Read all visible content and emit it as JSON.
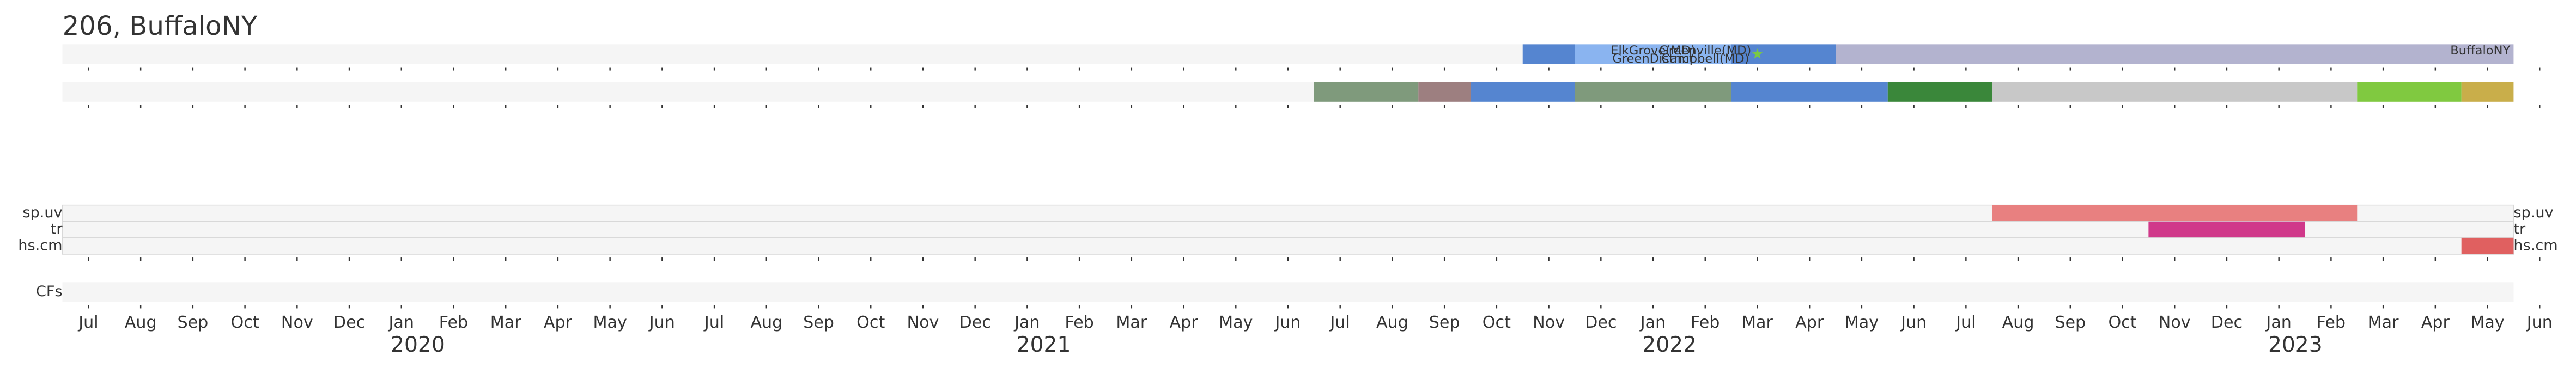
{
  "chart_data": {
    "type": "timeline",
    "title": "206, BuffaloNY",
    "xlim": [
      "2019-07",
      "2023-06"
    ],
    "xticks": [
      {
        "value": "2019-07",
        "label": "Jul"
      },
      {
        "value": "2019-08",
        "label": "Aug"
      },
      {
        "value": "2019-09",
        "label": "Sep"
      },
      {
        "value": "2019-10",
        "label": "Oct"
      },
      {
        "value": "2019-11",
        "label": "Nov"
      },
      {
        "value": "2019-12",
        "label": "Dec"
      },
      {
        "value": "2020-01",
        "label": "Jan"
      },
      {
        "value": "2020-02",
        "label": "Feb"
      },
      {
        "value": "2020-03",
        "label": "Mar"
      },
      {
        "value": "2020-04",
        "label": "Apr"
      },
      {
        "value": "2020-05",
        "label": "May"
      },
      {
        "value": "2020-06",
        "label": "Jun"
      },
      {
        "value": "2020-07",
        "label": "Jul"
      },
      {
        "value": "2020-08",
        "label": "Aug"
      },
      {
        "value": "2020-09",
        "label": "Sep"
      },
      {
        "value": "2020-10",
        "label": "Oct"
      },
      {
        "value": "2020-11",
        "label": "Nov"
      },
      {
        "value": "2020-12",
        "label": "Dec"
      },
      {
        "value": "2021-01",
        "label": "Jan"
      },
      {
        "value": "2021-02",
        "label": "Feb"
      },
      {
        "value": "2021-03",
        "label": "Mar"
      },
      {
        "value": "2021-04",
        "label": "Apr"
      },
      {
        "value": "2021-05",
        "label": "May"
      },
      {
        "value": "2021-06",
        "label": "Jun"
      },
      {
        "value": "2021-07",
        "label": "Jul"
      },
      {
        "value": "2021-08",
        "label": "Aug"
      },
      {
        "value": "2021-09",
        "label": "Sep"
      },
      {
        "value": "2021-10",
        "label": "Oct"
      },
      {
        "value": "2021-11",
        "label": "Nov"
      },
      {
        "value": "2021-12",
        "label": "Dec"
      },
      {
        "value": "2022-01",
        "label": "Jan"
      },
      {
        "value": "2022-02",
        "label": "Feb"
      },
      {
        "value": "2022-03",
        "label": "Mar"
      },
      {
        "value": "2022-04",
        "label": "Apr"
      },
      {
        "value": "2022-05",
        "label": "May"
      },
      {
        "value": "2022-06",
        "label": "Jun"
      },
      {
        "value": "2022-07",
        "label": "Jul"
      },
      {
        "value": "2022-08",
        "label": "Aug"
      },
      {
        "value": "2022-09",
        "label": "Sep"
      },
      {
        "value": "2022-10",
        "label": "Oct"
      },
      {
        "value": "2022-11",
        "label": "Nov"
      },
      {
        "value": "2022-12",
        "label": "Dec"
      },
      {
        "value": "2023-01",
        "label": "Jan"
      },
      {
        "value": "2023-02",
        "label": "Feb"
      },
      {
        "value": "2023-03",
        "label": "Mar"
      },
      {
        "value": "2023-04",
        "label": "Apr"
      },
      {
        "value": "2023-05",
        "label": "May"
      },
      {
        "value": "2023-06",
        "label": "Jun"
      }
    ],
    "year_labels": [
      {
        "value": "2020-01",
        "label": "2020"
      },
      {
        "value": "2021-01",
        "label": "2021"
      },
      {
        "value": "2022-01",
        "label": "2022"
      },
      {
        "value": "2023-01",
        "label": "2023"
      }
    ],
    "tracks": [
      {
        "bars": [
          {
            "start": "2021-11",
            "end": "2021-12",
            "color": "#5585d0"
          },
          {
            "start": "2021-12",
            "end": "2022-03",
            "color": "#8ab4f0"
          },
          {
            "start": "2022-03",
            "end": "2022-05",
            "color": "#5585d0"
          },
          {
            "start": "2022-05",
            "end": "2023-06",
            "color": "#b3b3cf",
            "label": "BuffaloNY"
          }
        ],
        "annotations": [
          {
            "text": "ElkGrove(MD)",
            "date": "2022-01"
          },
          {
            "text": "GreenDistrict",
            "date": "2022-01"
          },
          {
            "text": "Greenville(MD)",
            "date": "2022-02"
          },
          {
            "text": "Campbell(MD)",
            "date": "2022-02"
          }
        ],
        "markers": [
          {
            "date": "2022-03",
            "shape": "star",
            "color": "#7ac943"
          }
        ]
      },
      {
        "bars": [
          {
            "start": "2021-07",
            "end": "2021-09",
            "color": "#7f9a7c"
          },
          {
            "start": "2021-09",
            "end": "2021-10",
            "color": "#9d7f80"
          },
          {
            "start": "2021-10",
            "end": "2021-12",
            "color": "#5585d0"
          },
          {
            "start": "2021-12",
            "end": "2022-03",
            "color": "#7f9a7c"
          },
          {
            "start": "2022-03",
            "end": "2022-06",
            "color": "#5585d0"
          },
          {
            "start": "2022-06",
            "end": "2022-08",
            "color": "#3a873a"
          },
          {
            "start": "2022-08",
            "end": "2023-03",
            "color": "#c8c8c8"
          },
          {
            "start": "2023-03",
            "end": "2023-05",
            "color": "#80c940"
          },
          {
            "start": "2023-05",
            "end": "2023-06",
            "color": "#c9ae4a"
          }
        ]
      },
      {
        "name": "sp.uv",
        "bars": [
          {
            "start": "2022-08",
            "end": "2023-03",
            "color": "#e88080"
          }
        ]
      },
      {
        "name": "tr",
        "bars": [
          {
            "start": "2022-11",
            "end": "2023-02",
            "color": "#d0388a"
          }
        ]
      },
      {
        "name": "hs.cm",
        "bars": [
          {
            "start": "2023-05",
            "end": "2023-06",
            "color": "#e06060"
          }
        ]
      },
      {
        "name": "CFs",
        "bars": []
      }
    ]
  }
}
